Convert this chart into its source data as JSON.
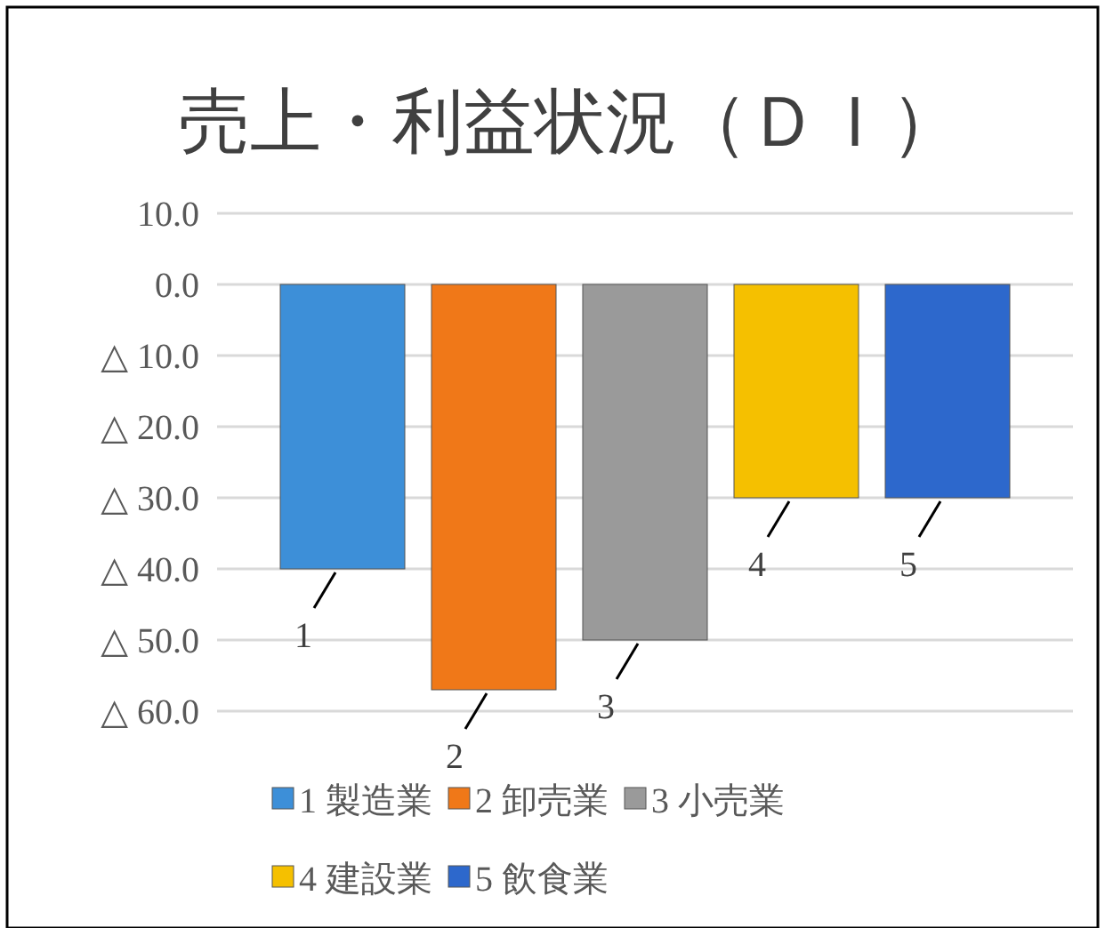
{
  "chart_data": {
    "type": "bar",
    "title": "売上・利益状況（ＤＩ）",
    "categories": [
      null
    ],
    "series": [
      {
        "name": "1 製造業",
        "color": "#3d8fd8",
        "values": [
          -40
        ]
      },
      {
        "name": "2 卸売業",
        "color": "#f07818",
        "values": [
          -57
        ]
      },
      {
        "name": "3 小売業",
        "color": "#9a9a9a",
        "values": [
          -50
        ]
      },
      {
        "name": "4 建設業",
        "color": "#f5c000",
        "values": [
          -30
        ]
      },
      {
        "name": "5 飲食業",
        "color": "#2d68cc",
        "values": [
          -30
        ]
      }
    ],
    "ylim": [
      -60,
      10
    ],
    "yticks": [
      {
        "value": 10,
        "label": "10.0"
      },
      {
        "value": 0,
        "label": "0.0"
      },
      {
        "value": -10,
        "label": "△ 10.0"
      },
      {
        "value": -20,
        "label": "△ 20.0"
      },
      {
        "value": -30,
        "label": "△ 30.0"
      },
      {
        "value": -40,
        "label": "△ 40.0"
      },
      {
        "value": -50,
        "label": "△ 50.0"
      },
      {
        "value": -60,
        "label": "△ 60.0"
      }
    ],
    "grid": "y",
    "legend": "bottom",
    "annotations": [
      {
        "text": "1",
        "y": -40
      },
      {
        "text": "2",
        "y": -57
      },
      {
        "text": "3",
        "y": -50
      },
      {
        "text": "4",
        "y": -30
      },
      {
        "text": "5",
        "y": -30
      }
    ]
  }
}
